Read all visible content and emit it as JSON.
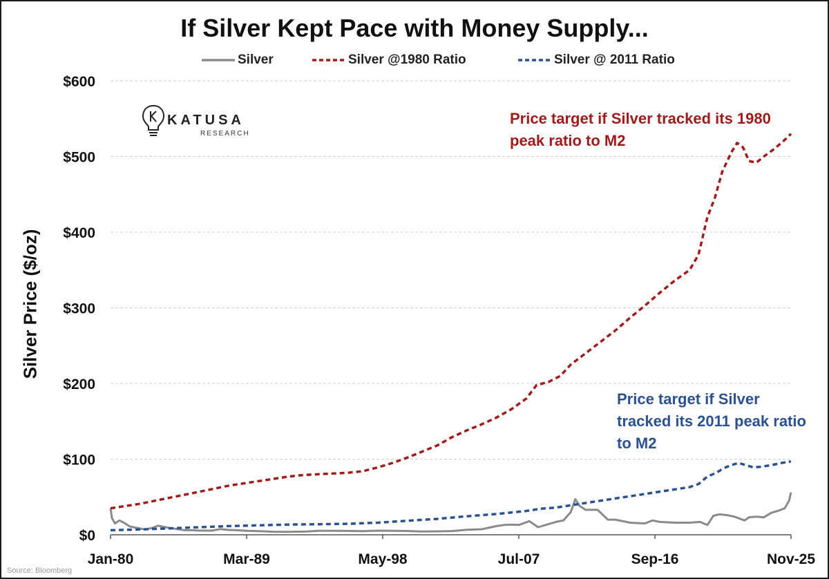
{
  "title": "If Silver Kept Pace with Money Supply...",
  "legend": [
    {
      "label": "Silver",
      "color": "#8a8a8a",
      "style": "solid"
    },
    {
      "label": "Silver @1980 Ratio",
      "color": "#a01b1b",
      "style": "dashed"
    },
    {
      "label": "Silver @ 2011 Ratio",
      "color": "#2c5190",
      "style": "dashed"
    }
  ],
  "ylabel": "Silver Price ($/oz)",
  "logo": {
    "name": "KATUSA",
    "sub": "RESEARCH",
    "icon": "lightbulb-k-icon"
  },
  "annotations": {
    "red": "Price target if Silver tracked its 1980 peak ratio to M2",
    "blue": "Price target if Silver tracked its 2011 peak ratio to M2"
  },
  "source": "Source: Bloomberg",
  "chart_data": {
    "type": "line",
    "title": "If Silver Kept Pace with Money Supply...",
    "xlabel": "",
    "ylabel": "Silver Price ($/oz)",
    "x_ticks": [
      "Jan-80",
      "Mar-89",
      "May-98",
      "Jul-07",
      "Sep-16",
      "Nov-25"
    ],
    "y_ticks": [
      "$0",
      "$100",
      "$200",
      "$300",
      "$400",
      "$500",
      "$600"
    ],
    "ylim": [
      0,
      600
    ],
    "xlim": [
      1980.0,
      2025.83
    ],
    "grid": true,
    "legend_position": "top",
    "series": [
      {
        "name": "Silver",
        "color": "#8a8a8a",
        "style": "solid",
        "points": [
          [
            1980.0,
            35
          ],
          [
            1980.1,
            22
          ],
          [
            1980.3,
            15
          ],
          [
            1980.6,
            19
          ],
          [
            1980.9,
            16
          ],
          [
            1981.3,
            11
          ],
          [
            1981.8,
            9
          ],
          [
            1982.3,
            7
          ],
          [
            1982.8,
            9
          ],
          [
            1983.2,
            12
          ],
          [
            1983.7,
            10
          ],
          [
            1984.3,
            8
          ],
          [
            1985.0,
            6
          ],
          [
            1985.5,
            6
          ],
          [
            1986.0,
            5.5
          ],
          [
            1986.8,
            5.5
          ],
          [
            1987.4,
            7.5
          ],
          [
            1987.9,
            6.5
          ],
          [
            1988.5,
            6
          ],
          [
            1989.2,
            5.3
          ],
          [
            1990.0,
            4.8
          ],
          [
            1991.0,
            4
          ],
          [
            1992.0,
            3.9
          ],
          [
            1993.2,
            4.3
          ],
          [
            1994.0,
            5.3
          ],
          [
            1995.0,
            5.2
          ],
          [
            1996.0,
            5.1
          ],
          [
            1997.0,
            4.8
          ],
          [
            1998.0,
            5.5
          ],
          [
            1999.0,
            5.2
          ],
          [
            2000.0,
            5
          ],
          [
            2001.0,
            4.4
          ],
          [
            2002.0,
            4.6
          ],
          [
            2003.0,
            4.9
          ],
          [
            2004.0,
            6.7
          ],
          [
            2005.0,
            7.3
          ],
          [
            2006.0,
            11.5
          ],
          [
            2006.5,
            13
          ],
          [
            2007.0,
            13.4
          ],
          [
            2007.5,
            13
          ],
          [
            2008.2,
            18
          ],
          [
            2008.8,
            10
          ],
          [
            2009.3,
            13
          ],
          [
            2010.0,
            17
          ],
          [
            2010.5,
            19
          ],
          [
            2011.0,
            30
          ],
          [
            2011.3,
            47
          ],
          [
            2011.6,
            38
          ],
          [
            2012.0,
            33
          ],
          [
            2012.8,
            33
          ],
          [
            2013.5,
            20
          ],
          [
            2014.0,
            20
          ],
          [
            2015.0,
            16
          ],
          [
            2016.0,
            15
          ],
          [
            2016.5,
            19
          ],
          [
            2017.0,
            17
          ],
          [
            2018.0,
            16
          ],
          [
            2019.0,
            16
          ],
          [
            2019.7,
            17
          ],
          [
            2020.2,
            13
          ],
          [
            2020.6,
            25
          ],
          [
            2021.0,
            27
          ],
          [
            2021.5,
            26
          ],
          [
            2022.0,
            24
          ],
          [
            2022.7,
            19
          ],
          [
            2023.0,
            23
          ],
          [
            2023.5,
            24
          ],
          [
            2024.0,
            23
          ],
          [
            2024.5,
            29
          ],
          [
            2025.0,
            32
          ],
          [
            2025.4,
            35
          ],
          [
            2025.7,
            45
          ],
          [
            2025.83,
            56
          ]
        ]
      },
      {
        "name": "Silver @1980 Ratio",
        "color": "#a01b1b",
        "style": "dashed",
        "points": [
          [
            1980.0,
            35
          ],
          [
            1981.0,
            38
          ],
          [
            1982.0,
            41
          ],
          [
            1983.0,
            45
          ],
          [
            1984.0,
            49
          ],
          [
            1985.0,
            53
          ],
          [
            1986.0,
            57
          ],
          [
            1987.0,
            61
          ],
          [
            1988.0,
            65
          ],
          [
            1989.0,
            68
          ],
          [
            1990.0,
            71
          ],
          [
            1991.0,
            74
          ],
          [
            1992.0,
            77
          ],
          [
            1993.0,
            79
          ],
          [
            1994.0,
            80
          ],
          [
            1995.0,
            81
          ],
          [
            1996.0,
            82
          ],
          [
            1997.0,
            84
          ],
          [
            1998.0,
            89
          ],
          [
            1999.0,
            95
          ],
          [
            2000.0,
            102
          ],
          [
            2001.0,
            110
          ],
          [
            2002.0,
            118
          ],
          [
            2003.0,
            129
          ],
          [
            2004.0,
            138
          ],
          [
            2005.0,
            146
          ],
          [
            2006.0,
            155
          ],
          [
            2007.0,
            166
          ],
          [
            2008.0,
            180
          ],
          [
            2008.7,
            198
          ],
          [
            2009.5,
            202
          ],
          [
            2010.3,
            210
          ],
          [
            2011.0,
            225
          ],
          [
            2012.0,
            240
          ],
          [
            2013.0,
            255
          ],
          [
            2014.0,
            270
          ],
          [
            2015.0,
            287
          ],
          [
            2016.0,
            303
          ],
          [
            2017.0,
            320
          ],
          [
            2018.0,
            336
          ],
          [
            2019.0,
            350
          ],
          [
            2019.6,
            370
          ],
          [
            2020.2,
            420
          ],
          [
            2020.7,
            445
          ],
          [
            2021.2,
            480
          ],
          [
            2021.8,
            505
          ],
          [
            2022.2,
            518
          ],
          [
            2022.6,
            512
          ],
          [
            2023.0,
            494
          ],
          [
            2023.5,
            492
          ],
          [
            2024.0,
            500
          ],
          [
            2024.7,
            510
          ],
          [
            2025.3,
            520
          ],
          [
            2025.83,
            530
          ]
        ]
      },
      {
        "name": "Silver @ 2011 Ratio",
        "color": "#2c5190",
        "style": "dashed",
        "points": [
          [
            1980.0,
            6
          ],
          [
            1982.0,
            7
          ],
          [
            1984.0,
            8.5
          ],
          [
            1986.0,
            10
          ],
          [
            1988.0,
            11.5
          ],
          [
            1990.0,
            12.5
          ],
          [
            1992.0,
            13.5
          ],
          [
            1994.0,
            14
          ],
          [
            1996.0,
            14.5
          ],
          [
            1998.0,
            16
          ],
          [
            2000.0,
            18.5
          ],
          [
            2002.0,
            21
          ],
          [
            2004.0,
            24.5
          ],
          [
            2006.0,
            27.5
          ],
          [
            2008.0,
            31.5
          ],
          [
            2009.0,
            34.5
          ],
          [
            2010.0,
            36
          ],
          [
            2011.0,
            39
          ],
          [
            2012.0,
            42
          ],
          [
            2013.0,
            45
          ],
          [
            2014.0,
            48
          ],
          [
            2015.0,
            51
          ],
          [
            2016.0,
            54
          ],
          [
            2017.0,
            57
          ],
          [
            2018.0,
            60
          ],
          [
            2019.0,
            63
          ],
          [
            2019.6,
            67
          ],
          [
            2020.2,
            77
          ],
          [
            2020.8,
            82
          ],
          [
            2021.3,
            88
          ],
          [
            2021.8,
            92
          ],
          [
            2022.3,
            95
          ],
          [
            2022.8,
            92
          ],
          [
            2023.3,
            89
          ],
          [
            2023.8,
            90
          ],
          [
            2024.5,
            92
          ],
          [
            2025.2,
            95
          ],
          [
            2025.83,
            97
          ]
        ]
      }
    ]
  }
}
